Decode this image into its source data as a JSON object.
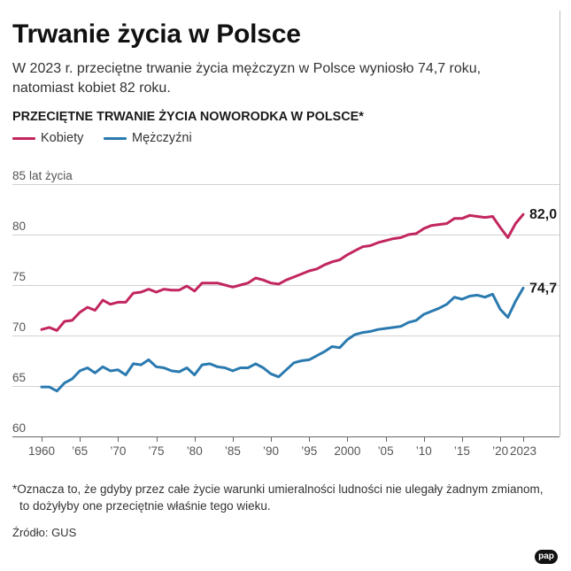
{
  "title": "Trwanie życia w Polsce",
  "subtitle": {
    "line1": "W 2023 r. przeciętne trwanie życia mężczyzn w Polsce wyniosło 74,7 roku,",
    "line2": "natomiast kobiet 82 roku."
  },
  "chart_data": {
    "type": "line",
    "title": "PRZECIĘTNE TRWANIE ŻYCIA NOWORODKA W POLSCE*",
    "ylabel": "lat życia",
    "xlim": [
      1960,
      2023
    ],
    "ylim": [
      60,
      85
    ],
    "grid": true,
    "legend": "top-left",
    "y_ticks": [
      60,
      65,
      70,
      75,
      80,
      85
    ],
    "y_tick_labels": [
      "60",
      "65",
      "70",
      "75",
      "80",
      "85"
    ],
    "x_ticks": [
      1960,
      1965,
      1970,
      1975,
      1980,
      1985,
      1990,
      1995,
      2000,
      2005,
      2010,
      2015,
      2020,
      2023
    ],
    "x_tick_labels": [
      "1960",
      "’65",
      "’70",
      "’75",
      "’80",
      "’85",
      "’90",
      "’95",
      "2000",
      "’05",
      "’10",
      "’15",
      "’20",
      "2023"
    ],
    "x": [
      1960,
      1961,
      1962,
      1963,
      1964,
      1965,
      1966,
      1967,
      1968,
      1969,
      1970,
      1971,
      1972,
      1973,
      1974,
      1975,
      1976,
      1977,
      1978,
      1979,
      1980,
      1981,
      1982,
      1983,
      1984,
      1985,
      1986,
      1987,
      1988,
      1989,
      1990,
      1991,
      1992,
      1993,
      1994,
      1995,
      1996,
      1997,
      1998,
      1999,
      2000,
      2001,
      2002,
      2003,
      2004,
      2005,
      2006,
      2007,
      2008,
      2009,
      2010,
      2011,
      2012,
      2013,
      2014,
      2015,
      2016,
      2017,
      2018,
      2019,
      2020,
      2021,
      2022,
      2023
    ],
    "series": [
      {
        "name": "Kobiety",
        "color": "#c2265f",
        "end_label": "82,0",
        "values": [
          70.6,
          70.8,
          70.5,
          71.4,
          71.5,
          72.3,
          72.8,
          72.5,
          73.5,
          73.1,
          73.3,
          73.3,
          74.2,
          74.3,
          74.6,
          74.3,
          74.6,
          74.5,
          74.5,
          74.9,
          74.4,
          75.2,
          75.2,
          75.2,
          75.0,
          74.8,
          75.0,
          75.2,
          75.7,
          75.5,
          75.2,
          75.1,
          75.5,
          75.8,
          76.1,
          76.4,
          76.6,
          77.0,
          77.3,
          77.5,
          78.0,
          78.4,
          78.8,
          78.9,
          79.2,
          79.4,
          79.6,
          79.7,
          80.0,
          80.1,
          80.6,
          80.9,
          81.0,
          81.1,
          81.6,
          81.6,
          81.9,
          81.8,
          81.7,
          81.8,
          80.7,
          79.7,
          81.1,
          82.0
        ]
      },
      {
        "name": "Mężczyźni",
        "color": "#2a7ab0",
        "end_label": "74,7",
        "values": [
          64.9,
          64.9,
          64.5,
          65.3,
          65.7,
          66.5,
          66.8,
          66.3,
          66.9,
          66.5,
          66.6,
          66.1,
          67.2,
          67.1,
          67.6,
          66.9,
          66.8,
          66.5,
          66.4,
          66.8,
          66.1,
          67.1,
          67.2,
          66.9,
          66.8,
          66.5,
          66.8,
          66.8,
          67.2,
          66.8,
          66.2,
          65.9,
          66.6,
          67.3,
          67.5,
          67.6,
          68.0,
          68.4,
          68.9,
          68.8,
          69.6,
          70.1,
          70.3,
          70.4,
          70.6,
          70.7,
          70.8,
          70.9,
          71.3,
          71.5,
          72.1,
          72.4,
          72.7,
          73.1,
          73.8,
          73.6,
          73.9,
          74.0,
          73.8,
          74.1,
          72.6,
          71.8,
          73.4,
          74.7
        ]
      }
    ]
  },
  "footnote": {
    "line1": "*Oznacza to, że gdyby przez całe życie warunki umieralności ludności nie ulegały żadnym zmianom,",
    "line2": "to dożyłyby one przeciętnie właśnie tego wieku."
  },
  "source": "Źródło: GUS",
  "logo": "pap"
}
